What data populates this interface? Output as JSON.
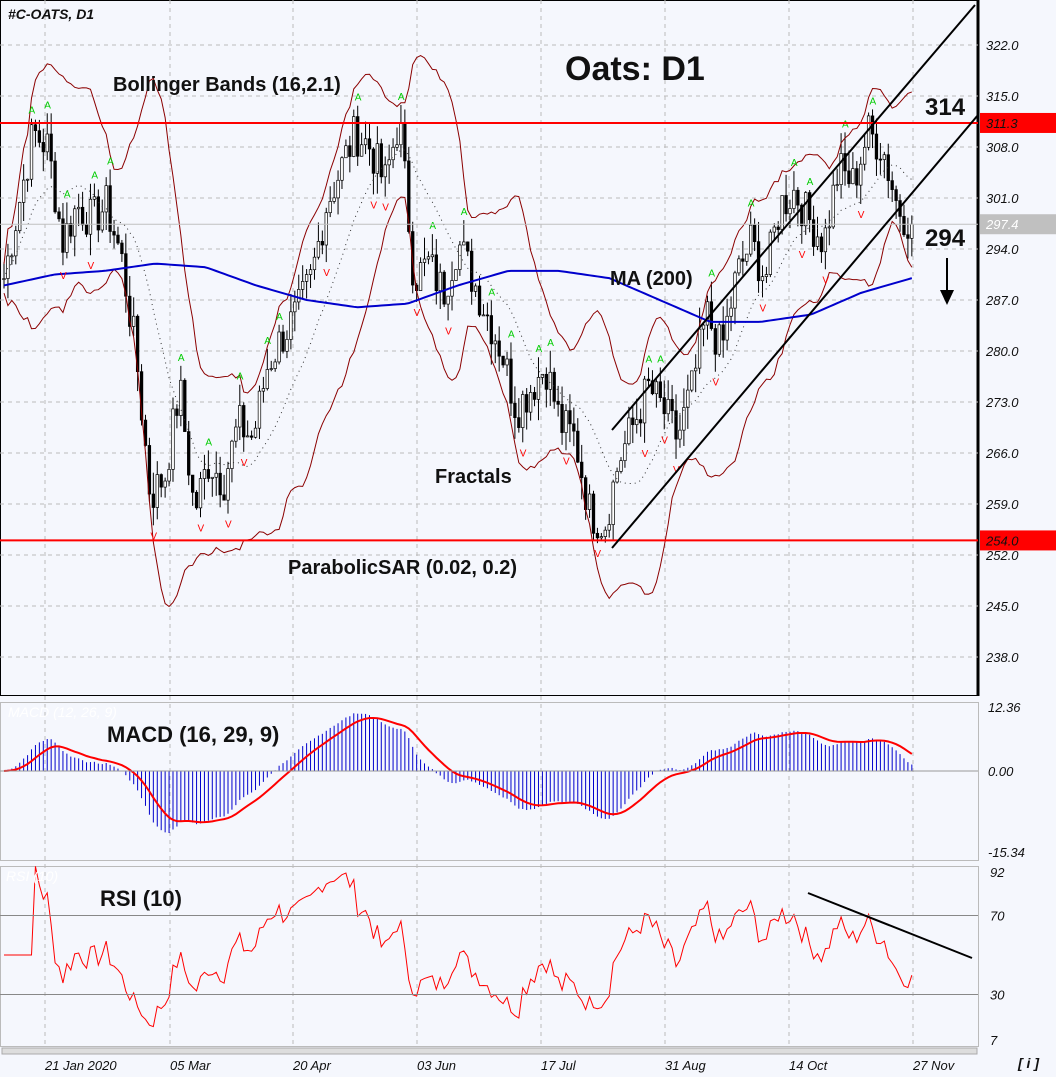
{
  "chart_data": {
    "type": "candlestick",
    "symbol": "#C-OATS, D1",
    "title": "Oats: D1",
    "timeframe": "D1",
    "x_ticks": [
      "21 Jan 2020",
      "05 Mar",
      "20 Apr",
      "03 Jun",
      "17 Jul",
      "31 Aug",
      "14 Oct",
      "27 Nov"
    ],
    "y_ticks": [
      322.0,
      315.0,
      308.0,
      301.0,
      294.0,
      287.0,
      280.0,
      273.0,
      266.0,
      259.0,
      252.0,
      245.0,
      238.0
    ],
    "ylim": [
      233.5,
      327.0
    ],
    "close_sampled": [
      290,
      300,
      310,
      308,
      295,
      300,
      298,
      300,
      293,
      280,
      260,
      263,
      275,
      258,
      265,
      262,
      270,
      268,
      278,
      282,
      285,
      290,
      300,
      305,
      310,
      308,
      303,
      312,
      290,
      292,
      288,
      295,
      290,
      285,
      280,
      272,
      275,
      278,
      270,
      268,
      258,
      256,
      265,
      270,
      275,
      272,
      268,
      275,
      285,
      280,
      290,
      295,
      290,
      300,
      302,
      298,
      295,
      305,
      303,
      310,
      308,
      300,
      297.4
    ],
    "ma200_sampled": [
      289,
      290.5,
      291,
      292,
      291.5,
      289,
      287,
      286,
      286.5,
      289,
      291,
      291,
      290,
      287,
      284,
      284,
      285,
      288,
      290
    ],
    "last_price": "297.4",
    "levels": [
      {
        "label": "311.3",
        "value": 311.3,
        "color": "#ff0000"
      },
      {
        "label": "254.0",
        "value": 254.0,
        "color": "#ff0000"
      }
    ],
    "current_price_tag": {
      "label": "297.4",
      "color": "#c0c0c0"
    },
    "annotations": {
      "resistance": "314",
      "support": "294",
      "bollinger": "Bollinger Bands (16,2.1)",
      "ma": "MA (200)",
      "fractals": "Fractals",
      "sar": "ParabolicSAR (0.02, 0.2)"
    },
    "macd": {
      "label": "MACD (16, 29, 9)",
      "faint_label": "MACD (12, 26, 9)",
      "y_ticks": [
        "12.36",
        "0.00",
        "-15.34"
      ]
    },
    "rsi": {
      "label": "RSI (10)",
      "faint_label": "RSI (10)",
      "y_ticks": [
        "92",
        "70",
        "30",
        "7"
      ]
    },
    "colors": {
      "candle": "#000000",
      "bollinger": "#8b0000",
      "ma": "#0000cc",
      "macd_hist": "#0000cc",
      "macd_signal": "#ff0000",
      "rsi": "#ff0000",
      "fractal_up": "#00cc00",
      "fractal_down": "#ff0000"
    }
  },
  "footer": {
    "info_button": "[ i ]"
  }
}
